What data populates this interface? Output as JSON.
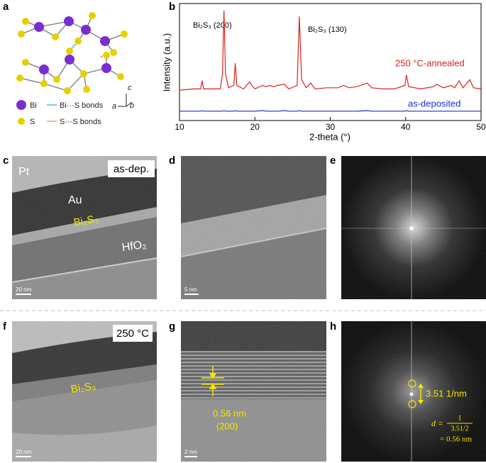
{
  "panel_labels": [
    "a",
    "b",
    "c",
    "d",
    "e",
    "f",
    "g",
    "h"
  ],
  "structure": {
    "legend": [
      "Bi",
      "Bi···S bonds",
      "S",
      "S···S bonds"
    ],
    "axes": [
      "a",
      "b",
      "c"
    ]
  },
  "chart_data": {
    "type": "line",
    "xlabel": "2-theta (°)",
    "ylabel": "Intensity (a.u.)",
    "annotations": [
      "Bi₂S₃ (200)",
      "Bi₂S₃ (130)"
    ],
    "x": [
      10,
      12,
      12.8,
      13,
      13.2,
      15.4,
      15.7,
      15.9,
      16.1,
      16.5,
      17.2,
      17.4,
      17.6,
      18.5,
      19.3,
      19.6,
      20,
      21,
      21.5,
      22,
      22.5,
      23,
      23.9,
      24.5,
      25.6,
      25.9,
      26.2,
      26.8,
      27.4,
      28,
      29.5,
      31,
      31.8,
      32.5,
      33.5,
      34.9,
      35.5,
      37,
      38.5,
      39.9,
      40.1,
      40.4,
      42,
      43.7,
      44.1,
      45,
      46,
      46.5,
      47.1,
      47.6,
      48.3,
      48.5,
      49,
      50
    ],
    "series": [
      {
        "name": "250 °C-annealed",
        "color": "#e0201b",
        "values": [
          26,
          27,
          27,
          34,
          27,
          27,
          40,
          94,
          40,
          28,
          30,
          49,
          30,
          27,
          33,
          30,
          27,
          30,
          29,
          30,
          29,
          30,
          31,
          27,
          30,
          89,
          35,
          28,
          32,
          27,
          28,
          28,
          30,
          28,
          29,
          32,
          28,
          27,
          27,
          30,
          39,
          29,
          27,
          29,
          31,
          28,
          30,
          28,
          34,
          28,
          33,
          35,
          28,
          27
        ]
      },
      {
        "name": "as-deposited",
        "color": "#1a2fd6",
        "values": [
          8,
          8,
          8,
          8.5,
          8,
          8,
          8,
          8.5,
          8,
          8,
          8,
          8.5,
          8,
          8,
          8,
          8,
          8,
          8.5,
          8,
          8,
          8,
          8,
          8.5,
          8,
          8,
          8.5,
          8,
          8,
          8,
          8,
          8,
          8,
          8,
          8,
          8,
          8.5,
          8,
          8,
          8,
          8,
          8.5,
          8,
          8,
          8,
          8,
          8,
          8,
          8,
          8,
          8,
          8,
          8,
          8,
          8
        ]
      }
    ],
    "xlim": [
      10,
      50
    ],
    "ylim": [
      0,
      100
    ],
    "xticks": [
      10,
      20,
      30,
      40,
      50
    ]
  },
  "images": {
    "c": {
      "labels": [
        "Pt",
        "as-dep.",
        "Au",
        "Bi₂S₃",
        "HfO₂"
      ],
      "scale": "20 nm"
    },
    "d": {
      "scale": "5 nm"
    },
    "f": {
      "labels": [
        "250 °C",
        "Bi₂S₃"
      ],
      "scale": "20 nm"
    },
    "g": {
      "labels": [
        "0.56 nm",
        "(200)"
      ],
      "scale": "2 nm"
    },
    "h": {
      "labels": [
        "3.51 1/nm"
      ],
      "formula": {
        "lhs": "d =",
        "numerator": "1",
        "denominator": "3.51/2",
        "result": "= 0.56 nm"
      }
    }
  }
}
